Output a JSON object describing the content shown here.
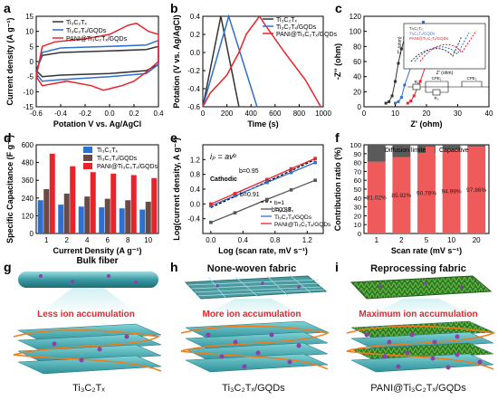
{
  "panel_letters": [
    "a",
    "b",
    "c",
    "d",
    "e",
    "f",
    "g",
    "h",
    "i"
  ],
  "colors": {
    "black": "#333333",
    "blue": "#2f6fd0",
    "red": "#e8242b",
    "gray": "#555555",
    "brown": "#6b4a45",
    "grid_red": "#ef5a5a"
  },
  "chart_data": [
    {
      "panel": "a",
      "type": "line",
      "xlabel": "Potation V vs. Ag/AgCl",
      "ylabel": "Current density (A g⁻¹)",
      "xlim": [
        -0.6,
        0.4
      ],
      "ylim": [
        -15,
        15
      ],
      "xticks": [
        "-0.6",
        "-0.4",
        "-0.2",
        "0.0",
        "0.2",
        "0.4"
      ],
      "yticks": [
        "-15",
        "-10",
        "-5",
        "0",
        "5",
        "10",
        "15"
      ],
      "legend": [
        "Ti₃C₂Tₓ",
        "Ti₃C₂Tₓ/GQDs",
        "PANI@Ti₃C₂Tₓ/GQDs"
      ],
      "series": [
        {
          "name": "Ti₃C₂Tₓ",
          "upper": [
            [
              -0.6,
              -3
            ],
            [
              -0.55,
              2
            ],
            [
              -0.4,
              3
            ],
            [
              0,
              3.5
            ],
            [
              0.3,
              4
            ],
            [
              0.4,
              5
            ]
          ],
          "lower": [
            [
              0.4,
              -1
            ],
            [
              0.3,
              -3
            ],
            [
              0,
              -4
            ],
            [
              -0.4,
              -4.5
            ],
            [
              -0.55,
              -5
            ],
            [
              -0.6,
              -3
            ]
          ]
        },
        {
          "name": "Ti₃C₂Tₓ/GQDs",
          "upper": [
            [
              -0.6,
              -4
            ],
            [
              -0.55,
              3
            ],
            [
              -0.4,
              4.5
            ],
            [
              0,
              5
            ],
            [
              0.3,
              5.5
            ],
            [
              0.4,
              7
            ]
          ],
          "lower": [
            [
              0.4,
              -1
            ],
            [
              0.3,
              -4
            ],
            [
              0,
              -5
            ],
            [
              -0.4,
              -6
            ],
            [
              -0.55,
              -6.5
            ],
            [
              -0.6,
              -4
            ]
          ]
        },
        {
          "name": "PANI@Ti₃C₂Tₓ/GQDs",
          "upper": [
            [
              -0.6,
              -5
            ],
            [
              -0.55,
              5
            ],
            [
              -0.45,
              6.5
            ],
            [
              -0.2,
              7.5
            ],
            [
              0.0,
              9
            ],
            [
              0.15,
              12
            ],
            [
              0.22,
              12.7
            ],
            [
              0.32,
              10
            ],
            [
              0.4,
              9
            ]
          ],
          "lower": [
            [
              0.4,
              0
            ],
            [
              0.3,
              -3.5
            ],
            [
              0.2,
              -6.5
            ],
            [
              0.1,
              -8
            ],
            [
              -0.05,
              -9.5
            ],
            [
              -0.15,
              -8
            ],
            [
              -0.35,
              -6.5
            ],
            [
              -0.55,
              -8
            ],
            [
              -0.6,
              -5
            ]
          ]
        }
      ]
    },
    {
      "panel": "b",
      "type": "line",
      "xlabel": "Time (s)",
      "ylabel": "Potation (V vs. Ag/AgCl)",
      "xlim": [
        0,
        1000
      ],
      "ylim": [
        -0.6,
        0.4
      ],
      "xticks": [
        "0",
        "200",
        "400",
        "600",
        "800",
        "1000"
      ],
      "yticks": [
        "-0.6",
        "-0.4",
        "-0.2",
        "0.0",
        "0.2",
        "0.4"
      ],
      "legend": [
        "Ti₃C₂Tₓ",
        "Ti₃C₂Tₓ/GQDs",
        "PANI@Ti₃C₂Tₓ/GQDs"
      ],
      "series": [
        {
          "name": "Ti₃C₂Tₓ",
          "points": [
            [
              0,
              -0.6
            ],
            [
              150,
              0.4
            ],
            [
              300,
              -0.6
            ]
          ]
        },
        {
          "name": "Ti₃C₂Tₓ/GQDs",
          "points": [
            [
              0,
              -0.6
            ],
            [
              215,
              0.4
            ],
            [
              450,
              -0.6
            ]
          ]
        },
        {
          "name": "PANI@Ti₃C₂Tₓ/GQDs",
          "points": [
            [
              0,
              -0.6
            ],
            [
              60,
              -0.45
            ],
            [
              200,
              -0.25
            ],
            [
              300,
              0.0
            ],
            [
              360,
              0.2
            ],
            [
              470,
              0.4
            ],
            [
              520,
              0.3
            ],
            [
              680,
              0.0
            ],
            [
              850,
              -0.3
            ],
            [
              980,
              -0.6
            ]
          ]
        }
      ]
    },
    {
      "panel": "c",
      "type": "scatter",
      "xlabel": "Z' (ohm)",
      "ylabel": "-Z'' (ohm)",
      "xlim": [
        0,
        40
      ],
      "ylim": [
        -5,
        120
      ],
      "xticks": [
        "0",
        "10",
        "20",
        "30",
        "40"
      ],
      "yticks": [
        "0",
        "20",
        "40",
        "60",
        "80",
        "100",
        "120"
      ],
      "inset": {
        "xlabel": "Z' (ohm)",
        "ylabel": "-Z'' (ohm)",
        "legend": [
          "Ti₃C₂Tₓ",
          "Ti₃C₂Tₓ/GQDs",
          "PANI@Ti₃C₂Tₓ/GQDs"
        ],
        "circuit_labels": [
          "R₁",
          "CPE₁",
          "R₂",
          "CPE₂"
        ]
      },
      "series": [
        {
          "name": "Ti₃C₂Tₓ",
          "points": [
            [
              7,
              0
            ],
            [
              8,
              2
            ],
            [
              9,
              10
            ],
            [
              10,
              30
            ],
            [
              11,
              55
            ],
            [
              12,
              75
            ],
            [
              13,
              90
            ],
            [
              14,
              100
            ]
          ]
        },
        {
          "name": "Ti₃C₂Tₓ/GQDs",
          "points": [
            [
              10,
              0
            ],
            [
              11,
              2
            ],
            [
              12,
              8
            ],
            [
              13,
              25
            ],
            [
              15,
              50
            ],
            [
              17,
              75
            ],
            [
              18,
              100
            ],
            [
              19,
              112
            ]
          ]
        },
        {
          "name": "PANI@Ti₃C₂Tₓ/GQDs",
          "points": [
            [
              14,
              0
            ],
            [
              15,
              3
            ],
            [
              16,
              10
            ],
            [
              18,
              30
            ],
            [
              20,
              55
            ],
            [
              21,
              75
            ],
            [
              22,
              90
            ],
            [
              23,
              105
            ]
          ]
        }
      ]
    },
    {
      "panel": "d",
      "type": "bar",
      "title": "Bulk fiber",
      "xlabel": "Current Density (A g⁻¹)",
      "ylabel": "Specific Capacitance (F g⁻¹)",
      "ylim": [
        0,
        600
      ],
      "yticks": [
        "0",
        "120",
        "240",
        "360",
        "480",
        "600"
      ],
      "categories": [
        "1",
        "2",
        "4",
        "6",
        "8",
        "10"
      ],
      "series": [
        {
          "name": "Ti₃C₂Tₓ",
          "values": [
            225,
            195,
            182,
            177,
            170,
            162
          ]
        },
        {
          "name": "Ti₃C₂Tₓ/GQDs",
          "values": [
            300,
            270,
            250,
            235,
            225,
            215
          ]
        },
        {
          "name": "PANI@Ti₃C₂Tₓ/GQDs",
          "values": [
            540,
            455,
            415,
            405,
            395,
            375
          ]
        }
      ]
    },
    {
      "panel": "e",
      "type": "scatter",
      "xlabel": "Log (scan rate, mV s⁻¹)",
      "ylabel": "Log(current density, A g⁻¹)",
      "xlim": [
        -0.1,
        1.4
      ],
      "ylim": [
        -0.8,
        1.6
      ],
      "xticks": [
        "0.0",
        "0.4",
        "0.8",
        "1.2"
      ],
      "yticks": [
        "-0.4",
        "0.0",
        "0.4",
        "0.8",
        "1.2"
      ],
      "equation": "iₚ = avᵇ",
      "annotations": [
        "Cathodic",
        "b=0.95",
        "b=0.91",
        "b=0.88"
      ],
      "legend": [
        "b=1",
        "Ti₃C₂Tₓ",
        "Ti₃C₂Tₓ/GQDs",
        "PANI@Ti₃C₂Tₓ/GQDs"
      ],
      "series": [
        {
          "name": "b=1",
          "points": [
            [
              0,
              -0.1
            ],
            [
              1.3,
              1.2
            ]
          ]
        },
        {
          "name": "Ti₃C₂Tₓ",
          "points": [
            [
              0,
              -0.5
            ],
            [
              0.3,
              -0.24
            ],
            [
              0.7,
              0.12
            ],
            [
              1.0,
              0.38
            ],
            [
              1.3,
              0.64
            ]
          ]
        },
        {
          "name": "Ti₃C₂Tₓ/GQDs",
          "points": [
            [
              0,
              -0.05
            ],
            [
              0.3,
              0.22
            ],
            [
              0.7,
              0.58
            ],
            [
              1.0,
              0.85
            ],
            [
              1.3,
              1.12
            ]
          ]
        },
        {
          "name": "PANI@Ti₃C₂Tₓ/GQDs",
          "points": [
            [
              0,
              0.0
            ],
            [
              0.3,
              0.28
            ],
            [
              0.7,
              0.66
            ],
            [
              1.0,
              0.95
            ],
            [
              1.3,
              1.23
            ]
          ]
        }
      ]
    },
    {
      "panel": "f",
      "type": "bar",
      "xlabel": "Scan rate (mV s⁻¹)",
      "ylabel": "Contribution ratio (%)",
      "ylim": [
        0,
        100
      ],
      "yticks": [
        "0",
        "10",
        "20",
        "30",
        "40",
        "50",
        "60",
        "70",
        "80",
        "90",
        "100"
      ],
      "categories": [
        "1",
        "2",
        "5",
        "10",
        "20"
      ],
      "legend": [
        "Diffusion limited",
        "Capacitive"
      ],
      "series": [
        {
          "name": "Capacitive",
          "values": [
            81.02,
            85.92,
            90.78,
            94.99,
            97.86
          ]
        },
        {
          "name": "Diffusion limited",
          "values": [
            18.98,
            14.08,
            9.22,
            5.01,
            2.14
          ]
        }
      ],
      "data_labels": [
        "81.02%",
        "85.92%",
        "90.78%",
        "94.99%",
        "97.86%"
      ]
    }
  ],
  "illustrations": {
    "g": {
      "title": "",
      "message": "Less ion accumulation",
      "material": "Ti₃C₂Tₓ"
    },
    "h": {
      "title": "None-woven fabric",
      "message": "More ion accumulation",
      "material": "Ti₃C₂Tₓ/GQDs"
    },
    "i": {
      "title": "Reprocessing fabric",
      "message": "Maximum ion accumulation",
      "material": "PANI@Ti₃C₂Tₓ/GQDs"
    }
  }
}
